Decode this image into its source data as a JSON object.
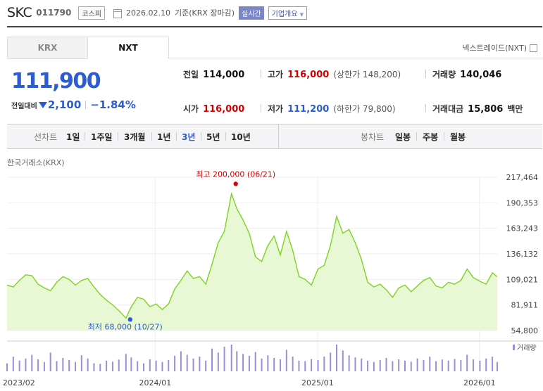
{
  "header": {
    "name": "SKC",
    "code": "011790",
    "market": "코스피",
    "date": "2026.02.10",
    "basis": "기준(KRX 장마감)",
    "realtime": "실시간",
    "corp_info": "기업개요",
    "corp_arrow": "▼"
  },
  "tabs": [
    "KRX",
    "NXT"
  ],
  "nxt_trade": "넥스트레이드(NXT)",
  "price": {
    "current": "111,900",
    "change_label": "전일대비",
    "change_value": "2,100",
    "change_pct": "−1.84%"
  },
  "quotes": {
    "prev_label": "전일",
    "prev": "114,000",
    "high_label": "고가",
    "high": "116,000",
    "upper_limit": "(상한가 148,200)",
    "volume_label": "거래량",
    "volume": "140,046",
    "open_label": "시가",
    "open": "116,000",
    "low_label": "저가",
    "low": "111,200",
    "lower_limit": "(하한가 79,800)",
    "amount_label": "거래대금",
    "amount": "15,806",
    "amount_unit": "백만"
  },
  "periods": {
    "label": "선차트",
    "items": [
      "1일",
      "1주일",
      "3개월",
      "1년",
      "3년",
      "5년",
      "10년"
    ],
    "selected": "3년",
    "candle_label": "봉차트",
    "candle_items": [
      "일봉",
      "주봉",
      "월봉"
    ]
  },
  "chart_source": "한국거래소(KRX)",
  "colors": {
    "price_down": "#2d5bd1",
    "price_up": "#d20000",
    "line": "#7ed321",
    "area": "#e8f8d4",
    "volume": "#9b8ed6"
  },
  "chart_data": {
    "type": "area",
    "x_ticks": [
      "2023/02",
      "2024/01",
      "2025/01",
      "2026/01"
    ],
    "y_ticks": [
      "217,464",
      "190,353",
      "163,243",
      "136,132",
      "109,021",
      "81,911",
      "54,800"
    ],
    "ylim": [
      54800,
      217464
    ],
    "x_start": "2023-02-01",
    "x_end": "2026-02-10",
    "max_label": "최고 200,000 (06/21)",
    "min_label": "최저 68,000 (10/27)",
    "volume_label": "거래량",
    "series": [
      {
        "values": [
          [
            "2023-02-01",
            103000
          ],
          [
            "2023-02-15",
            101000
          ],
          [
            "2023-03-01",
            108000
          ],
          [
            "2023-03-15",
            114000
          ],
          [
            "2023-03-29",
            113000
          ],
          [
            "2023-04-12",
            104000
          ],
          [
            "2023-04-26",
            100000
          ],
          [
            "2023-05-10",
            97000
          ],
          [
            "2023-05-24",
            106000
          ],
          [
            "2023-06-07",
            112000
          ],
          [
            "2023-06-21",
            109000
          ],
          [
            "2023-07-05",
            103000
          ],
          [
            "2023-07-19",
            108000
          ],
          [
            "2023-08-02",
            110000
          ],
          [
            "2023-08-16",
            101000
          ],
          [
            "2023-08-30",
            93000
          ],
          [
            "2023-09-13",
            87000
          ],
          [
            "2023-09-27",
            82000
          ],
          [
            "2023-10-11",
            76000
          ],
          [
            "2023-10-27",
            68000
          ],
          [
            "2023-11-08",
            80000
          ],
          [
            "2023-11-22",
            90000
          ],
          [
            "2023-12-06",
            88000
          ],
          [
            "2023-12-20",
            80000
          ],
          [
            "2024-01-03",
            83000
          ],
          [
            "2024-01-17",
            77000
          ],
          [
            "2024-01-31",
            83000
          ],
          [
            "2024-02-14",
            99000
          ],
          [
            "2024-02-28",
            108000
          ],
          [
            "2024-03-13",
            118000
          ],
          [
            "2024-03-27",
            110000
          ],
          [
            "2024-04-10",
            112000
          ],
          [
            "2024-04-24",
            104000
          ],
          [
            "2024-05-08",
            125000
          ],
          [
            "2024-05-22",
            148000
          ],
          [
            "2024-06-05",
            160000
          ],
          [
            "2024-06-21",
            200000
          ],
          [
            "2024-07-03",
            184000
          ],
          [
            "2024-07-17",
            172000
          ],
          [
            "2024-07-31",
            158000
          ],
          [
            "2024-08-14",
            133000
          ],
          [
            "2024-08-28",
            128000
          ],
          [
            "2024-09-11",
            145000
          ],
          [
            "2024-09-25",
            155000
          ],
          [
            "2024-10-09",
            135000
          ],
          [
            "2024-10-23",
            160000
          ],
          [
            "2024-11-06",
            140000
          ],
          [
            "2024-11-20",
            112000
          ],
          [
            "2024-12-04",
            109000
          ],
          [
            "2024-12-18",
            103000
          ],
          [
            "2025-01-02",
            120000
          ],
          [
            "2025-01-16",
            124000
          ],
          [
            "2025-01-30",
            145000
          ],
          [
            "2025-02-13",
            176000
          ],
          [
            "2025-02-27",
            158000
          ],
          [
            "2025-03-13",
            162000
          ],
          [
            "2025-03-27",
            148000
          ],
          [
            "2025-04-10",
            130000
          ],
          [
            "2025-04-24",
            106000
          ],
          [
            "2025-05-08",
            101000
          ],
          [
            "2025-05-22",
            104000
          ],
          [
            "2025-06-05",
            98000
          ],
          [
            "2025-06-19",
            90000
          ],
          [
            "2025-07-03",
            100000
          ],
          [
            "2025-07-17",
            103000
          ],
          [
            "2025-07-31",
            96000
          ],
          [
            "2025-08-14",
            102000
          ],
          [
            "2025-08-28",
            108000
          ],
          [
            "2025-09-11",
            111000
          ],
          [
            "2025-09-25",
            102000
          ],
          [
            "2025-10-09",
            100000
          ],
          [
            "2025-10-23",
            106000
          ],
          [
            "2025-11-06",
            104000
          ],
          [
            "2025-11-20",
            108000
          ],
          [
            "2025-12-04",
            120000
          ],
          [
            "2025-12-18",
            111000
          ],
          [
            "2026-01-02",
            107000
          ],
          [
            "2026-01-16",
            104000
          ],
          [
            "2026-01-30",
            116000
          ],
          [
            "2026-02-10",
            111900
          ]
        ]
      }
    ],
    "volume": [
      [
        "2023-02-01",
        30
      ],
      [
        "2023-02-15",
        55
      ],
      [
        "2023-03-01",
        40
      ],
      [
        "2023-03-15",
        48
      ],
      [
        "2023-03-29",
        62
      ],
      [
        "2023-04-12",
        45
      ],
      [
        "2023-04-26",
        35
      ],
      [
        "2023-05-10",
        70
      ],
      [
        "2023-05-24",
        38
      ],
      [
        "2023-06-07",
        50
      ],
      [
        "2023-06-21",
        42
      ],
      [
        "2023-07-05",
        35
      ],
      [
        "2023-07-19",
        60
      ],
      [
        "2023-08-02",
        48
      ],
      [
        "2023-08-16",
        30
      ],
      [
        "2023-08-30",
        28
      ],
      [
        "2023-09-13",
        40
      ],
      [
        "2023-09-27",
        36
      ],
      [
        "2023-10-11",
        44
      ],
      [
        "2023-10-27",
        65
      ],
      [
        "2023-11-08",
        52
      ],
      [
        "2023-11-22",
        38
      ],
      [
        "2023-12-06",
        30
      ],
      [
        "2023-12-20",
        45
      ],
      [
        "2024-01-03",
        40
      ],
      [
        "2024-01-17",
        35
      ],
      [
        "2024-01-31",
        42
      ],
      [
        "2024-02-14",
        58
      ],
      [
        "2024-02-28",
        75
      ],
      [
        "2024-03-13",
        62
      ],
      [
        "2024-03-27",
        48
      ],
      [
        "2024-04-10",
        55
      ],
      [
        "2024-04-24",
        40
      ],
      [
        "2024-05-08",
        85
      ],
      [
        "2024-05-22",
        70
      ],
      [
        "2024-06-05",
        92
      ],
      [
        "2024-06-21",
        100
      ],
      [
        "2024-07-03",
        75
      ],
      [
        "2024-07-17",
        65
      ],
      [
        "2024-07-31",
        58
      ],
      [
        "2024-08-14",
        72
      ],
      [
        "2024-08-28",
        48
      ],
      [
        "2024-09-11",
        60
      ],
      [
        "2024-09-25",
        50
      ],
      [
        "2024-10-09",
        45
      ],
      [
        "2024-10-23",
        80
      ],
      [
        "2024-11-06",
        55
      ],
      [
        "2024-11-20",
        40
      ],
      [
        "2024-12-04",
        38
      ],
      [
        "2024-12-18",
        46
      ],
      [
        "2025-01-02",
        42
      ],
      [
        "2025-01-16",
        55
      ],
      [
        "2025-01-30",
        70
      ],
      [
        "2025-02-13",
        100
      ],
      [
        "2025-02-27",
        78
      ],
      [
        "2025-03-13",
        60
      ],
      [
        "2025-03-27",
        52
      ],
      [
        "2025-04-10",
        48
      ],
      [
        "2025-04-24",
        40
      ],
      [
        "2025-05-08",
        35
      ],
      [
        "2025-05-22",
        42
      ],
      [
        "2025-06-05",
        50
      ],
      [
        "2025-06-19",
        38
      ],
      [
        "2025-07-03",
        45
      ],
      [
        "2025-07-17",
        40
      ],
      [
        "2025-07-31",
        36
      ],
      [
        "2025-08-14",
        48
      ],
      [
        "2025-08-28",
        42
      ],
      [
        "2025-09-11",
        55
      ],
      [
        "2025-09-25",
        38
      ],
      [
        "2025-10-09",
        44
      ],
      [
        "2025-10-23",
        40
      ],
      [
        "2025-11-06",
        46
      ],
      [
        "2025-11-20",
        42
      ],
      [
        "2025-12-04",
        62
      ],
      [
        "2025-12-18",
        45
      ],
      [
        "2026-01-02",
        40
      ],
      [
        "2026-01-16",
        48
      ],
      [
        "2026-01-30",
        55
      ],
      [
        "2026-02-10",
        35
      ]
    ]
  }
}
